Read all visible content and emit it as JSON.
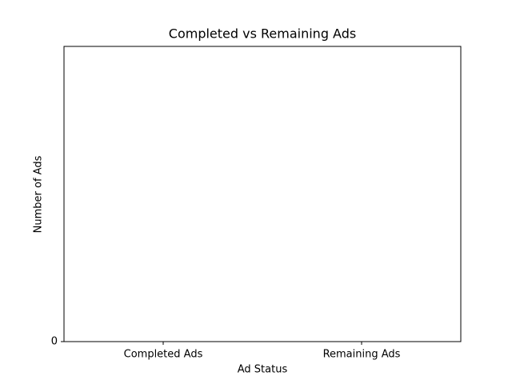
{
  "chart_data": {
    "type": "bar",
    "title": "Completed vs Remaining Ads",
    "x_label": "Ad Status",
    "y_label": "Number of Ads",
    "categories": [
      "Completed Ads",
      "Remaining Ads"
    ],
    "values": [
      0,
      0
    ],
    "color": "#1f77b4",
    "ylim": [
      0,
      1
    ],
    "yticks": [
      0
    ]
  }
}
